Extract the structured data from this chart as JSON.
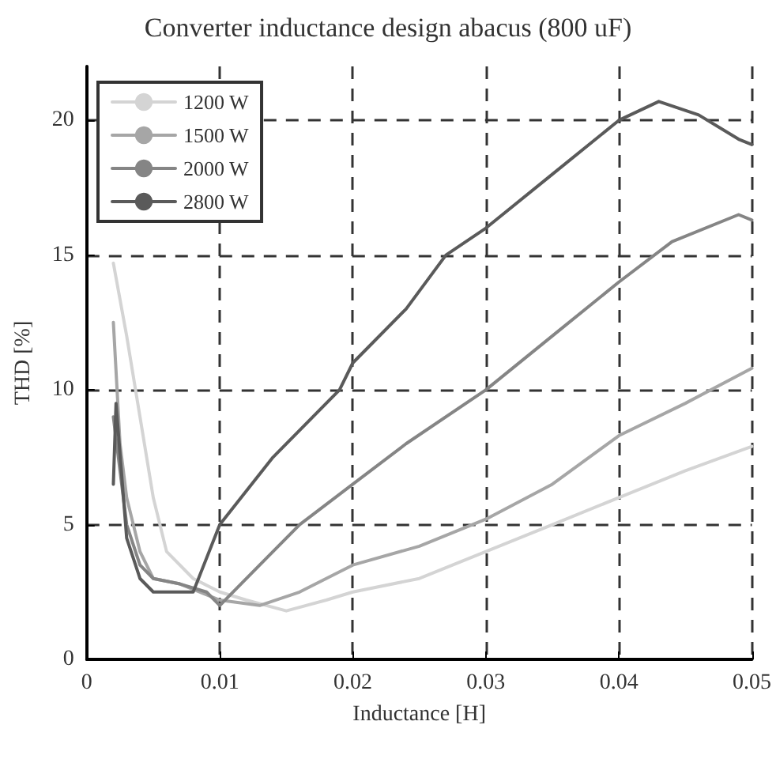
{
  "chart_data": {
    "type": "line",
    "title": "Converter inductance design abacus (800 uF)",
    "xlabel": "Inductance [H]",
    "ylabel": "THD [%]",
    "xlim": [
      0,
      0.05
    ],
    "xticks": [
      0,
      0.01,
      0.02,
      0.03,
      0.04,
      0.05
    ],
    "ylim": [
      0,
      22
    ],
    "yticks": [
      0,
      5,
      10,
      15,
      20
    ],
    "grid": true,
    "legend": "top left",
    "marker": "none",
    "line_style": "solid",
    "series": [
      {
        "name": "1200 W",
        "color": "#d4d4d4",
        "x": [
          0.002,
          0.003,
          0.004,
          0.005,
          0.006,
          0.008,
          0.01,
          0.012,
          0.015,
          0.018,
          0.02,
          0.025,
          0.03,
          0.035,
          0.04,
          0.045,
          0.05
        ],
        "values": [
          14.7,
          12,
          9,
          6,
          4,
          3,
          2.5,
          2.2,
          1.8,
          2.2,
          2.5,
          3,
          4,
          5,
          6,
          7,
          7.9
        ]
      },
      {
        "name": "1500 W",
        "color": "#a6a6a6",
        "x": [
          0.002,
          0.0025,
          0.003,
          0.004,
          0.005,
          0.007,
          0.01,
          0.013,
          0.016,
          0.018,
          0.02,
          0.025,
          0.03,
          0.035,
          0.04,
          0.045,
          0.05
        ],
        "values": [
          12.5,
          8,
          6,
          4,
          3,
          2.8,
          2.2,
          2,
          2.5,
          3,
          3.5,
          4.2,
          5.2,
          6.5,
          8.3,
          9.5,
          10.8
        ]
      },
      {
        "name": "2000 W",
        "color": "#858585",
        "x": [
          0.002,
          0.003,
          0.004,
          0.005,
          0.007,
          0.009,
          0.01,
          0.013,
          0.016,
          0.02,
          0.024,
          0.03,
          0.035,
          0.04,
          0.044,
          0.049,
          0.05
        ],
        "values": [
          9,
          5,
          3.5,
          3,
          2.8,
          2.5,
          2,
          3.5,
          5,
          6.5,
          8,
          10,
          12,
          14,
          15.5,
          16.5,
          16.3
        ]
      },
      {
        "name": "2800 W",
        "color": "#5a5a5a",
        "x": [
          0.002,
          0.0022,
          0.003,
          0.004,
          0.005,
          0.008,
          0.01,
          0.014,
          0.019,
          0.02,
          0.024,
          0.027,
          0.03,
          0.035,
          0.04,
          0.043,
          0.046,
          0.049,
          0.05
        ],
        "values": [
          6.5,
          9.5,
          4.5,
          3,
          2.5,
          2.5,
          5,
          7.5,
          10,
          11,
          13,
          15,
          16,
          18,
          20,
          20.7,
          20.2,
          19.3,
          19.1
        ]
      }
    ]
  }
}
